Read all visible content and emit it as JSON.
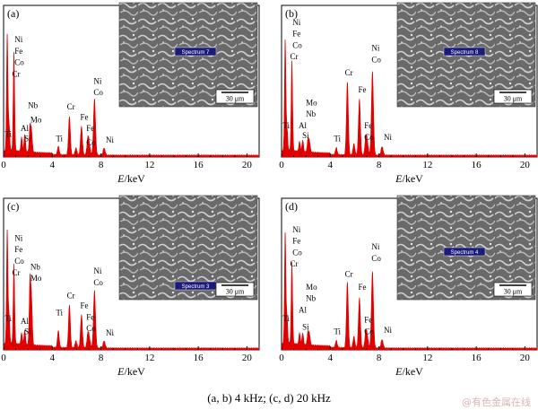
{
  "caption": "(a, b) 4 kHz; (c, d) 20 kHz",
  "watermark": "@有色金属在线",
  "colors": {
    "spectrum": "#e00000",
    "axis": "#000000",
    "sem_bg": "#6a6a6a"
  },
  "chart_data": [
    {
      "type": "area",
      "panel": "(a)",
      "xlabel": "E/keV",
      "xlim": [
        0,
        21
      ],
      "xticks": [
        0,
        4,
        8,
        12,
        16,
        20
      ],
      "inset": {
        "spectrum_label": "Spectrum 7",
        "scale_bar": "30 μm"
      },
      "peaks": [
        {
          "x": 0.3,
          "h": 0.82
        },
        {
          "x": 0.45,
          "h": 0.18
        },
        {
          "x": 0.85,
          "h": 0.68
        },
        {
          "x": 1.48,
          "h": 0.1
        },
        {
          "x": 1.74,
          "h": 0.12
        },
        {
          "x": 2.17,
          "h": 0.18
        },
        {
          "x": 2.3,
          "h": 0.14
        },
        {
          "x": 4.5,
          "h": 0.06
        },
        {
          "x": 5.41,
          "h": 0.27
        },
        {
          "x": 5.95,
          "h": 0.05
        },
        {
          "x": 6.4,
          "h": 0.2
        },
        {
          "x": 7.06,
          "h": 0.05
        },
        {
          "x": 6.93,
          "h": 0.12
        },
        {
          "x": 7.47,
          "h": 0.39
        },
        {
          "x": 8.26,
          "h": 0.05
        }
      ],
      "labels": [
        {
          "text": "Ni",
          "x": 0.9,
          "h": 0.8
        },
        {
          "text": "Fe",
          "x": 0.9,
          "h": 0.72
        },
        {
          "text": "Co",
          "x": 0.9,
          "h": 0.64
        },
        {
          "text": "Cr",
          "x": 0.7,
          "h": 0.56
        },
        {
          "text": "Ti",
          "x": 0.1,
          "h": 0.14
        },
        {
          "text": "Al",
          "x": 1.4,
          "h": 0.18
        },
        {
          "text": "Si",
          "x": 1.7,
          "h": 0.11
        },
        {
          "text": "Nb",
          "x": 2.0,
          "h": 0.34
        },
        {
          "text": "Mo",
          "x": 2.2,
          "h": 0.24
        },
        {
          "text": "Ti",
          "x": 4.3,
          "h": 0.11
        },
        {
          "text": "Cr",
          "x": 5.2,
          "h": 0.33
        },
        {
          "text": "Fe",
          "x": 6.3,
          "h": 0.26
        },
        {
          "text": "Fe",
          "x": 6.8,
          "h": 0.18
        },
        {
          "text": "Co",
          "x": 6.8,
          "h": 0.08
        },
        {
          "text": "Ni",
          "x": 7.4,
          "h": 0.51
        },
        {
          "text": "Co",
          "x": 7.4,
          "h": 0.43
        },
        {
          "text": "Ni",
          "x": 8.4,
          "h": 0.1
        }
      ]
    },
    {
      "type": "area",
      "panel": "(b)",
      "xlabel": "E/keV",
      "xlim": [
        0,
        21
      ],
      "xticks": [
        0,
        4,
        8,
        12,
        16,
        20
      ],
      "inset": {
        "spectrum_label": "Spectrum 8",
        "scale_bar": "30 μm"
      },
      "peaks": [
        {
          "x": 0.3,
          "h": 0.78
        },
        {
          "x": 0.45,
          "h": 0.15
        },
        {
          "x": 0.85,
          "h": 0.62
        },
        {
          "x": 1.48,
          "h": 0.07
        },
        {
          "x": 1.74,
          "h": 0.08
        },
        {
          "x": 2.17,
          "h": 0.09
        },
        {
          "x": 2.3,
          "h": 0.07
        },
        {
          "x": 4.5,
          "h": 0.05
        },
        {
          "x": 5.41,
          "h": 0.51
        },
        {
          "x": 5.95,
          "h": 0.08
        },
        {
          "x": 6.4,
          "h": 0.39
        },
        {
          "x": 7.06,
          "h": 0.07
        },
        {
          "x": 6.93,
          "h": 0.12
        },
        {
          "x": 7.47,
          "h": 0.58
        },
        {
          "x": 8.26,
          "h": 0.06
        }
      ],
      "labels": [
        {
          "text": "Ni",
          "x": 0.9,
          "h": 0.92
        },
        {
          "text": "Fe",
          "x": 0.9,
          "h": 0.84
        },
        {
          "text": "Co",
          "x": 0.9,
          "h": 0.76
        },
        {
          "text": "Cr",
          "x": 0.7,
          "h": 0.68
        },
        {
          "text": "Ti",
          "x": 0.1,
          "h": 0.2
        },
        {
          "text": "Al",
          "x": 1.4,
          "h": 0.2
        },
        {
          "text": "Si",
          "x": 1.7,
          "h": 0.13
        },
        {
          "text": "Mo",
          "x": 2.0,
          "h": 0.36
        },
        {
          "text": "Nb",
          "x": 2.0,
          "h": 0.28
        },
        {
          "text": "Ti",
          "x": 4.3,
          "h": 0.11
        },
        {
          "text": "Cr",
          "x": 5.2,
          "h": 0.57
        },
        {
          "text": "Fe",
          "x": 6.3,
          "h": 0.45
        },
        {
          "text": "Fe",
          "x": 6.8,
          "h": 0.2
        },
        {
          "text": "Co",
          "x": 6.8,
          "h": 0.12
        },
        {
          "text": "Ni",
          "x": 7.4,
          "h": 0.74
        },
        {
          "text": "Co",
          "x": 7.4,
          "h": 0.66
        },
        {
          "text": "Ni",
          "x": 8.4,
          "h": 0.12
        }
      ]
    },
    {
      "type": "area",
      "panel": "(c)",
      "xlabel": "E/keV",
      "xlim": [
        0,
        21
      ],
      "xticks": [
        0,
        4,
        8,
        12,
        16,
        20
      ],
      "inset": {
        "spectrum_label": "Spectrum 3",
        "scale_bar": "30 μm"
      },
      "peaks": [
        {
          "x": 0.3,
          "h": 0.8
        },
        {
          "x": 0.45,
          "h": 0.2
        },
        {
          "x": 0.85,
          "h": 0.55
        },
        {
          "x": 1.48,
          "h": 0.08
        },
        {
          "x": 1.74,
          "h": 0.1
        },
        {
          "x": 2.17,
          "h": 0.45
        },
        {
          "x": 2.3,
          "h": 0.3
        },
        {
          "x": 4.5,
          "h": 0.12
        },
        {
          "x": 5.41,
          "h": 0.3
        },
        {
          "x": 5.95,
          "h": 0.05
        },
        {
          "x": 6.4,
          "h": 0.23
        },
        {
          "x": 7.06,
          "h": 0.05
        },
        {
          "x": 6.93,
          "h": 0.1
        },
        {
          "x": 7.47,
          "h": 0.4
        },
        {
          "x": 8.26,
          "h": 0.05
        }
      ],
      "labels": [
        {
          "text": "Ni",
          "x": 0.9,
          "h": 0.76
        },
        {
          "text": "Fe",
          "x": 0.9,
          "h": 0.68
        },
        {
          "text": "Co",
          "x": 0.9,
          "h": 0.6
        },
        {
          "text": "Cr",
          "x": 0.7,
          "h": 0.52
        },
        {
          "text": "Ti",
          "x": 0.1,
          "h": 0.2
        },
        {
          "text": "Al",
          "x": 1.4,
          "h": 0.18
        },
        {
          "text": "Si",
          "x": 1.7,
          "h": 0.11
        },
        {
          "text": "Nb",
          "x": 2.2,
          "h": 0.56
        },
        {
          "text": "Mo",
          "x": 2.2,
          "h": 0.48
        },
        {
          "text": "Ti",
          "x": 4.3,
          "h": 0.24
        },
        {
          "text": "Cr",
          "x": 5.2,
          "h": 0.36
        },
        {
          "text": "Fe",
          "x": 6.3,
          "h": 0.29
        },
        {
          "text": "Fe",
          "x": 6.8,
          "h": 0.21
        },
        {
          "text": "Co",
          "x": 6.8,
          "h": 0.13
        },
        {
          "text": "Ni",
          "x": 7.4,
          "h": 0.53
        },
        {
          "text": "Co",
          "x": 7.4,
          "h": 0.45
        },
        {
          "text": "Ni",
          "x": 8.4,
          "h": 0.1
        }
      ]
    },
    {
      "type": "area",
      "panel": "(d)",
      "xlabel": "E/keV",
      "xlim": [
        0,
        21
      ],
      "xticks": [
        0,
        4,
        8,
        12,
        16,
        20
      ],
      "inset": {
        "spectrum_label": "Spectrum 4",
        "scale_bar": "30 μm"
      },
      "peaks": [
        {
          "x": 0.3,
          "h": 0.78
        },
        {
          "x": 0.45,
          "h": 0.18
        },
        {
          "x": 0.85,
          "h": 0.56
        },
        {
          "x": 1.48,
          "h": 0.08
        },
        {
          "x": 1.74,
          "h": 0.08
        },
        {
          "x": 2.17,
          "h": 0.09
        },
        {
          "x": 2.3,
          "h": 0.07
        },
        {
          "x": 4.5,
          "h": 0.05
        },
        {
          "x": 5.41,
          "h": 0.46
        },
        {
          "x": 5.95,
          "h": 0.08
        },
        {
          "x": 6.4,
          "h": 0.35
        },
        {
          "x": 7.06,
          "h": 0.06
        },
        {
          "x": 6.93,
          "h": 0.11
        },
        {
          "x": 7.47,
          "h": 0.53
        },
        {
          "x": 8.26,
          "h": 0.06
        }
      ],
      "labels": [
        {
          "text": "Ni",
          "x": 0.9,
          "h": 0.82
        },
        {
          "text": "Fe",
          "x": 0.9,
          "h": 0.74
        },
        {
          "text": "Co",
          "x": 0.9,
          "h": 0.66
        },
        {
          "text": "Cr",
          "x": 0.7,
          "h": 0.58
        },
        {
          "text": "Ti",
          "x": 0.1,
          "h": 0.2
        },
        {
          "text": "Al",
          "x": 1.4,
          "h": 0.26
        },
        {
          "text": "Si",
          "x": 1.7,
          "h": 0.14
        },
        {
          "text": "Mo",
          "x": 2.0,
          "h": 0.42
        },
        {
          "text": "Nb",
          "x": 2.0,
          "h": 0.34
        },
        {
          "text": "Ti",
          "x": 4.3,
          "h": 0.11
        },
        {
          "text": "Cr",
          "x": 5.2,
          "h": 0.51
        },
        {
          "text": "Fe",
          "x": 6.3,
          "h": 0.42
        },
        {
          "text": "Fe",
          "x": 6.8,
          "h": 0.19
        },
        {
          "text": "Co",
          "x": 6.8,
          "h": 0.11
        },
        {
          "text": "Ni",
          "x": 7.4,
          "h": 0.7
        },
        {
          "text": "Co",
          "x": 7.4,
          "h": 0.62
        },
        {
          "text": "Ni",
          "x": 8.4,
          "h": 0.12
        }
      ]
    }
  ]
}
